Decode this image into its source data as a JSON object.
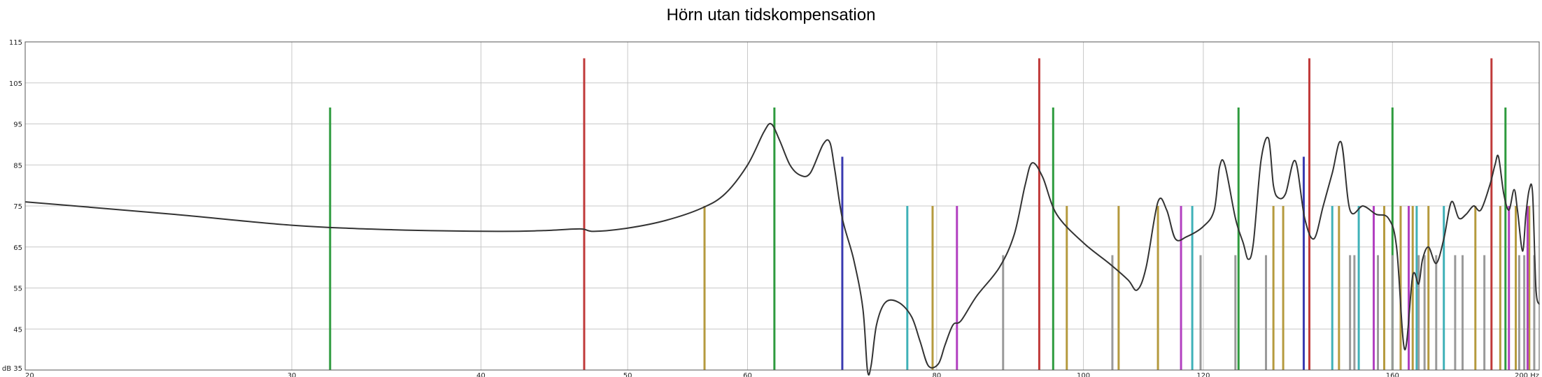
{
  "chart_data": {
    "type": "line",
    "title": "Hörn utan tidskompensation",
    "xscale": "log",
    "xlim": [
      20,
      200
    ],
    "ylim": [
      35,
      115
    ],
    "grid": true,
    "y_ticks": [
      {
        "value": 35,
        "label": "dB 35"
      },
      {
        "value": 45,
        "label": "45"
      },
      {
        "value": 55,
        "label": "55"
      },
      {
        "value": 65,
        "label": "65"
      },
      {
        "value": 75,
        "label": "75"
      },
      {
        "value": 85,
        "label": "85"
      },
      {
        "value": 95,
        "label": "95"
      },
      {
        "value": 105,
        "label": "105"
      },
      {
        "value": 115,
        "label": "115"
      }
    ],
    "x_ticks": [
      {
        "value": 20,
        "label": "20"
      },
      {
        "value": 30,
        "label": "30"
      },
      {
        "value": 40,
        "label": "40"
      },
      {
        "value": 50,
        "label": "50"
      },
      {
        "value": 60,
        "label": "60"
      },
      {
        "value": 80,
        "label": "80"
      },
      {
        "value": 100,
        "label": "100"
      },
      {
        "value": 120,
        "label": "120"
      },
      {
        "value": 160,
        "label": "160"
      },
      {
        "value": 200,
        "label": "200 Hz"
      }
    ],
    "series": [
      {
        "color": "#333333",
        "x": [
          20,
          25,
          30,
          35,
          41,
          44,
          46.5,
          47.5,
          50,
          53,
          56,
          58,
          60,
          61.5,
          62.2,
          63,
          64,
          65,
          66,
          67.3,
          68,
          68.5,
          69.3,
          70.5,
          71.5,
          72,
          72.4,
          73,
          74,
          75.5,
          77,
          78,
          79,
          80.2,
          81,
          82,
          83,
          85,
          88,
          90,
          91.5,
          92.5,
          94,
          96,
          100,
          104,
          107,
          108.5,
          110,
          112,
          113.5,
          115,
          117,
          120,
          122,
          123,
          124,
          126,
          127.5,
          128.5,
          129.5,
          131,
          132.5,
          133.5,
          134.5,
          136,
          138,
          140,
          142,
          144,
          146,
          148,
          150,
          153,
          156,
          159,
          161,
          163,
          165,
          166.5,
          167.5,
          169,
          171,
          173,
          175,
          177,
          179,
          181,
          183,
          185.5,
          187,
          188,
          189.5,
          191,
          192.5,
          193.5,
          195,
          196,
          197,
          198,
          199,
          200
        ],
        "y": [
          76,
          73,
          70.3,
          69.2,
          68.8,
          69,
          69.4,
          68.8,
          69.6,
          71.5,
          74.5,
          78,
          85,
          93,
          95,
          91,
          85,
          82.5,
          83,
          90,
          90.5,
          84,
          72,
          62,
          50,
          35,
          36,
          46,
          51.5,
          51.5,
          48,
          42,
          36,
          36.5,
          41,
          46,
          47,
          53,
          60,
          68,
          80,
          85.5,
          82,
          73,
          66,
          61,
          57,
          54.5,
          60,
          76,
          74,
          67,
          67.5,
          70,
          74,
          84.5,
          85,
          72,
          66,
          62,
          66,
          86,
          91.5,
          80,
          77,
          78,
          86,
          72,
          67,
          75,
          83,
          90.5,
          74,
          75,
          73,
          72,
          65,
          40,
          58,
          56,
          62,
          65,
          61,
          67,
          76,
          72,
          73,
          75,
          74,
          80,
          85,
          87,
          78,
          74,
          79,
          74,
          64,
          73,
          79,
          78,
          55,
          51
        ]
      }
    ],
    "markers": [
      {
        "color": "#2e9b3e",
        "top": 99,
        "x": [
          31.8,
          62.5,
          95.5,
          126.6,
          160,
          190
        ]
      },
      {
        "color": "#c03a3a",
        "top": 111,
        "x": [
          46.8,
          93.5,
          141,
          186
        ]
      },
      {
        "color": "#3a3ab0",
        "top": 87,
        "x": [
          69.3,
          139.8
        ]
      },
      {
        "color": "#b59a3e",
        "top": 75,
        "x": [
          56.2,
          79.5,
          97.5,
          105.5,
          112,
          133.5,
          135.5,
          147.5,
          158,
          162,
          165,
          169,
          181.5,
          188.5,
          193,
          197
        ]
      },
      {
        "color": "#3fb1b8",
        "top": 75,
        "x": [
          76.5,
          118,
          146,
          152,
          166,
          173
        ]
      },
      {
        "color": "#b23fc0",
        "top": 75,
        "x": [
          82.5,
          116,
          155.5,
          164,
          191,
          196.5
        ]
      },
      {
        "color": "#9a9a9a",
        "top": 63,
        "x": [
          88.5,
          104.5,
          119.5,
          126,
          132,
          150,
          151,
          156.5,
          160,
          166.5,
          168,
          171,
          176,
          178,
          184,
          194,
          195.5,
          198.5
        ]
      }
    ]
  }
}
